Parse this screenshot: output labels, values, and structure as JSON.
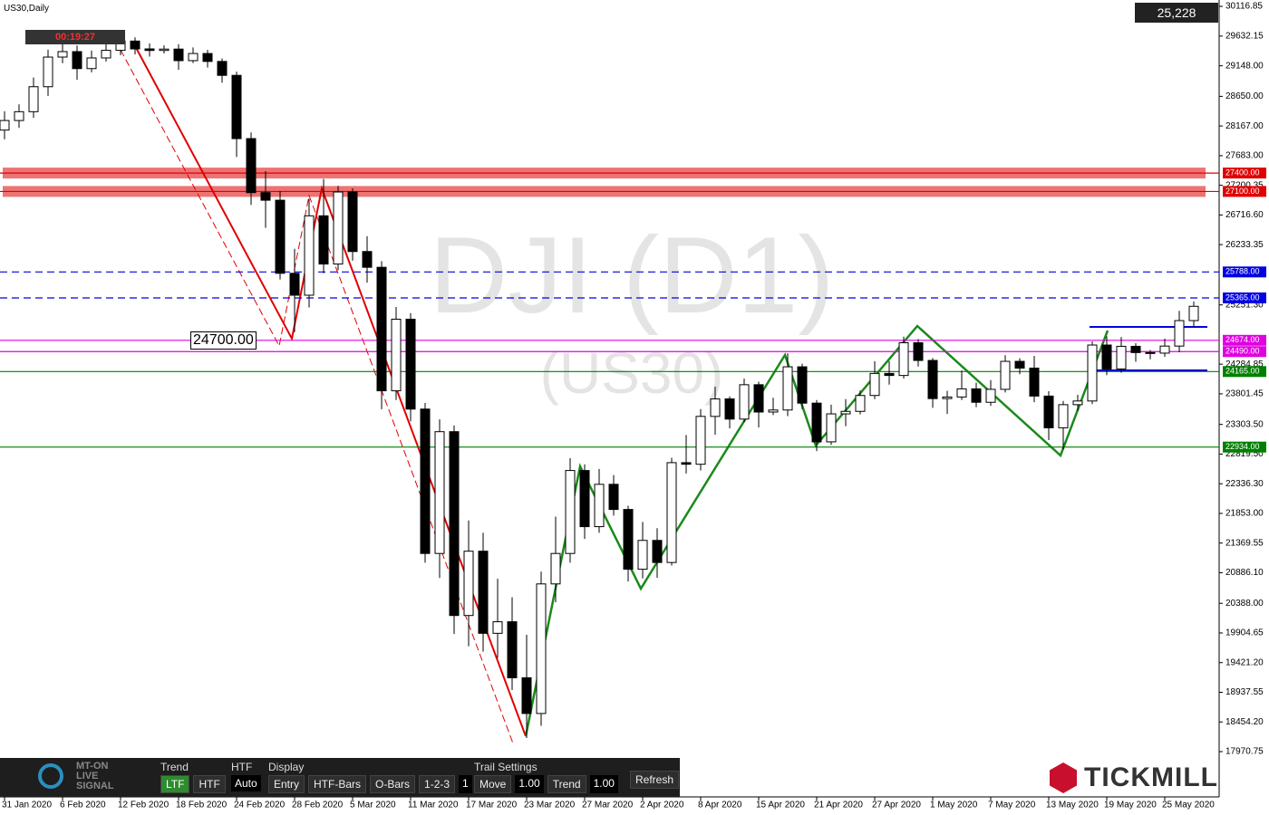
{
  "chart_data": {
    "type": "candlestick",
    "symbol": "US30,Daily",
    "timer": "00:19:27",
    "price_box": "25,228",
    "watermark": "DJI (D1)",
    "watermark_sub": "(US30)",
    "box_label": "24700.00",
    "categories": [
      "31 Jan 2020",
      null,
      null,
      null,
      "6 Feb 2020",
      null,
      null,
      null,
      "12 Feb 2020",
      null,
      null,
      null,
      "18 Feb 2020",
      null,
      null,
      null,
      "24 Feb 2020",
      null,
      null,
      null,
      "28 Feb 2020",
      null,
      null,
      null,
      "5 Mar 2020",
      null,
      null,
      null,
      "11 Mar 2020",
      null,
      null,
      null,
      "17 Mar 2020",
      null,
      null,
      null,
      "23 Mar 2020",
      null,
      null,
      null,
      "27 Mar 2020",
      null,
      null,
      null,
      "2 Apr 2020",
      null,
      null,
      null,
      "8 Apr 2020",
      null,
      null,
      null,
      "15 Apr 2020",
      null,
      null,
      null,
      "21 Apr 2020",
      null,
      null,
      null,
      "27 Apr 2020",
      null,
      null,
      null,
      "1 May 2020",
      null,
      null,
      null,
      "7 May 2020",
      null,
      null,
      null,
      "13 May 2020",
      null,
      null,
      null,
      "19 May 2020",
      null,
      null,
      null,
      "25 May 2020",
      null,
      null
    ],
    "open": [
      28100,
      28256,
      28400,
      28807,
      29290,
      29379,
      29102,
      29276,
      29400,
      29551,
      29423,
      29398,
      29420,
      29232,
      29348,
      29219,
      28992,
      27961,
      27081,
      26957,
      25766,
      25409,
      26703,
      25917,
      27091,
      26121,
      25864,
      23851,
      25018,
      23553,
      21200,
      23185,
      20189,
      21237,
      19899,
      20087,
      19174,
      18592,
      20704,
      21200,
      22552,
      21637,
      22327,
      21917,
      20943,
      21413,
      21053,
      22680,
      22654,
      23434,
      23719,
      23390,
      23950,
      23505,
      23538,
      24242,
      23650,
      23019,
      23475,
      23516,
      23775,
      24134,
      24101,
      24634,
      24346,
      23724,
      23750,
      23883,
      23664,
      23875,
      24331,
      24221,
      23765,
      23248,
      23625,
      23685,
      24597,
      24207,
      24576,
      24474,
      24465,
      24580,
      24995
    ],
    "high": [
      28406,
      28520,
      28957,
      29410,
      29529,
      29479,
      29396,
      29500,
      29681,
      29611,
      29513,
      29480,
      29500,
      29448,
      29408,
      29269,
      29052,
      28061,
      27431,
      27107,
      26166,
      26983,
      27303,
      27191,
      27151,
      26371,
      25964,
      25218,
      25118,
      23653,
      23385,
      23285,
      21737,
      21537,
      20787,
      20487,
      19874,
      20904,
      21800,
      22752,
      22652,
      22577,
      22477,
      21977,
      21713,
      21613,
      22760,
      23130,
      23554,
      23919,
      23759,
      24050,
      24000,
      23738,
      24462,
      24292,
      23700,
      23625,
      23716,
      23855,
      24334,
      24334,
      24734,
      24694,
      24386,
      23850,
      24183,
      23983,
      24025,
      24431,
      24381,
      24421,
      23845,
      23685,
      23785,
      24657,
      24737,
      24726,
      24626,
      24514,
      24700,
      25155,
      25308
    ],
    "low": [
      27950,
      28136,
      28300,
      28657,
      29190,
      28922,
      29042,
      29216,
      29320,
      29333,
      29298,
      29348,
      29082,
      29192,
      29119,
      28872,
      27661,
      26881,
      26507,
      25666,
      24809,
      25209,
      25767,
      25817,
      25971,
      25614,
      23551,
      23701,
      23353,
      21050,
      20800,
      19889,
      19689,
      19599,
      19499,
      18974,
      18192,
      18392,
      20404,
      21050,
      21437,
      21537,
      21817,
      20743,
      20793,
      20803,
      21003,
      22504,
      22554,
      23134,
      23240,
      23340,
      23255,
      23455,
      23438,
      23550,
      22869,
      22969,
      23275,
      23466,
      23715,
      23951,
      24051,
      24246,
      23574,
      23474,
      23700,
      23584,
      23604,
      23825,
      24121,
      23665,
      23048,
      22898,
      23525,
      23635,
      24107,
      24147,
      24324,
      24365,
      24405,
      24480,
      24895
    ],
    "close": [
      28256,
      28400,
      28807,
      29290,
      29379,
      29102,
      29276,
      29400,
      29551,
      29423,
      29398,
      29420,
      29232,
      29348,
      29219,
      28992,
      27961,
      27081,
      26957,
      25766,
      25409,
      26703,
      25917,
      27091,
      26121,
      25864,
      23851,
      25018,
      23553,
      21200,
      23185,
      20189,
      21237,
      19899,
      20087,
      19174,
      18592,
      20704,
      21200,
      22552,
      21637,
      22327,
      21917,
      20943,
      21413,
      21053,
      22680,
      22654,
      23434,
      23719,
      23390,
      23950,
      23505,
      23538,
      24242,
      23650,
      23019,
      23475,
      23516,
      23775,
      24134,
      24101,
      24634,
      24346,
      23724,
      23750,
      23883,
      23664,
      23875,
      24331,
      24221,
      23765,
      23248,
      23625,
      23685,
      24597,
      24207,
      24576,
      24474,
      24465,
      24580,
      24995,
      25228
    ],
    "ylim": [
      17970.75,
      30116.85
    ],
    "yticks": [
      {
        "value": 30116.85,
        "label": "30116.85"
      },
      {
        "value": 29632.15,
        "label": "29632.15"
      },
      {
        "value": 29148,
        "label": "29148.00"
      },
      {
        "value": 28650,
        "label": "28650.00"
      },
      {
        "value": 28167,
        "label": "28167.00"
      },
      {
        "value": 27683,
        "label": "27683.00"
      },
      {
        "value": 27200.35,
        "label": "27200.35"
      },
      {
        "value": 26716.6,
        "label": "26716.60"
      },
      {
        "value": 26233.35,
        "label": "26233.35"
      },
      {
        "value": 25251.3,
        "label": "25251.30"
      },
      {
        "value": 24284.85,
        "label": "24284.85"
      },
      {
        "value": 23801.45,
        "label": "23801.45"
      },
      {
        "value": 23303.5,
        "label": "23303.50"
      },
      {
        "value": 22819.5,
        "label": "22819.50"
      },
      {
        "value": 22336.3,
        "label": "22336.30"
      },
      {
        "value": 21853,
        "label": "21853.00"
      },
      {
        "value": 21369.55,
        "label": "21369.55"
      },
      {
        "value": 20886.1,
        "label": "20886.10"
      },
      {
        "value": 20388,
        "label": "20388.00"
      },
      {
        "value": 19904.65,
        "label": "19904.65"
      },
      {
        "value": 19421.2,
        "label": "19421.20"
      },
      {
        "value": 18937.55,
        "label": "18937.55"
      },
      {
        "value": 18454.2,
        "label": "18454.20"
      },
      {
        "value": 17970.75,
        "label": "17970.75"
      }
    ],
    "levels": [
      {
        "value": 27400,
        "label": "27400.00",
        "color": "#e00000",
        "dash": false,
        "band": true
      },
      {
        "value": 27100,
        "label": "27100.00",
        "color": "#e00000",
        "dash": false,
        "band": true
      },
      {
        "value": 25788,
        "label": "25788.00",
        "color": "#0000e0",
        "dash": true,
        "band": false
      },
      {
        "value": 25365,
        "label": "25365.00",
        "color": "#0000e0",
        "dash": true,
        "band": false
      },
      {
        "value": 24674,
        "label": "24674.00",
        "color": "#e000e0",
        "dash": false,
        "band": false
      },
      {
        "value": 24490,
        "label": "24490.00",
        "color": "#e000e0",
        "dash": false,
        "band": false
      },
      {
        "value": 24165,
        "label": "24165.00",
        "color": "#008000",
        "dash": false,
        "band": false
      },
      {
        "value": 22934,
        "label": "22934.00",
        "color": "#008000",
        "dash": false,
        "band": false
      }
    ]
  },
  "panel": {
    "trend_title": "Trend",
    "ltf": "LTF",
    "htf": "HTF",
    "htf_title": "HTF",
    "auto": "Auto",
    "display_title": "Display",
    "entry": "Entry",
    "htf_bars": "HTF-Bars",
    "o_bars": "O-Bars",
    "one_two_three": "1-2-3",
    "count": "1",
    "trail_title": "Trail Settings",
    "move": "Move",
    "move_value": "1.00",
    "trend": "Trend",
    "trend_value": "1.00",
    "refresh": "Refresh",
    "logo": [
      "MT-ON",
      "LIVE",
      "SIGNAL"
    ]
  },
  "brand": "TICKMILL"
}
